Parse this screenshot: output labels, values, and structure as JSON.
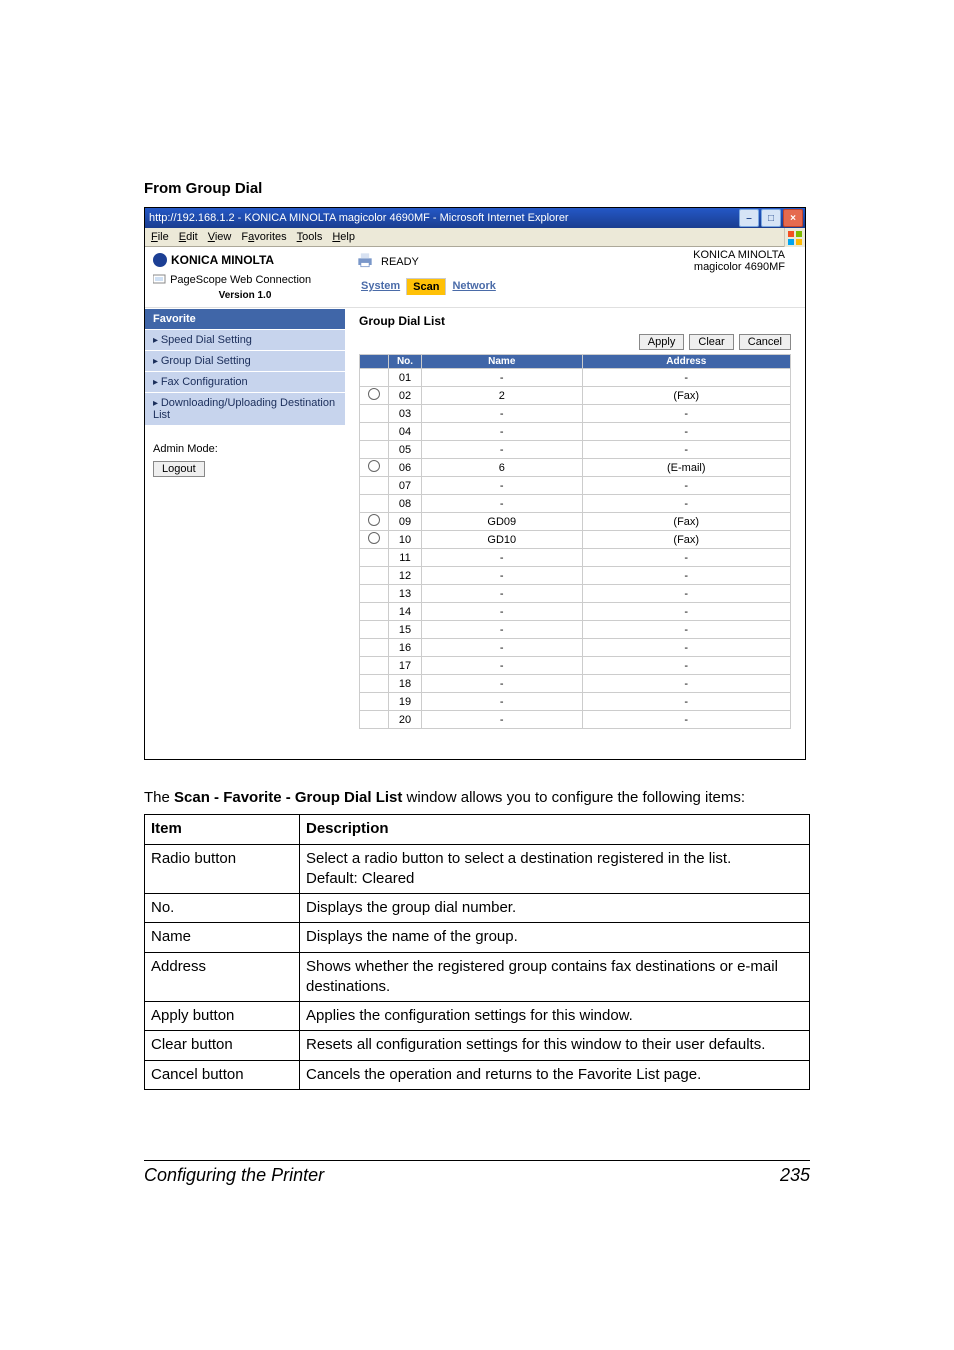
{
  "section_title": "From Group Dial",
  "window": {
    "title": "http://192.168.1.2 - KONICA MINOLTA magicolor 4690MF - Microsoft Internet Explorer",
    "menu": [
      "File",
      "Edit",
      "View",
      "Favorites",
      "Tools",
      "Help"
    ],
    "brand": "KONICA MINOLTA",
    "connection_label": "PageScope Web Connection",
    "version": "Version 1.0",
    "ready": "READY",
    "model_line1": "KONICA MINOLTA",
    "model_line2": "magicolor 4690MF",
    "tabs": {
      "system": "System",
      "scan": "Scan",
      "network": "Network"
    },
    "side": {
      "favorite": "Favorite",
      "speed": "Speed Dial Setting",
      "group": "Group Dial Setting",
      "fax": "Fax Configuration",
      "download": "Downloading/Uploading Destination List",
      "admin_label": "Admin Mode:",
      "logout": "Logout"
    },
    "panel_title": "Group Dial List",
    "buttons": {
      "apply": "Apply",
      "clear": "Clear",
      "cancel": "Cancel"
    },
    "headers": {
      "no": "No.",
      "name": "Name",
      "address": "Address"
    },
    "rows": [
      {
        "radio": false,
        "no": "01",
        "name": "-",
        "addr": "-"
      },
      {
        "radio": true,
        "no": "02",
        "name": "2",
        "addr": "(Fax)"
      },
      {
        "radio": false,
        "no": "03",
        "name": "-",
        "addr": "-"
      },
      {
        "radio": false,
        "no": "04",
        "name": "-",
        "addr": "-"
      },
      {
        "radio": false,
        "no": "05",
        "name": "-",
        "addr": "-"
      },
      {
        "radio": true,
        "no": "06",
        "name": "6",
        "addr": "(E-mail)"
      },
      {
        "radio": false,
        "no": "07",
        "name": "-",
        "addr": "-"
      },
      {
        "radio": false,
        "no": "08",
        "name": "-",
        "addr": "-"
      },
      {
        "radio": true,
        "no": "09",
        "name": "GD09",
        "addr": "(Fax)"
      },
      {
        "radio": true,
        "no": "10",
        "name": "GD10",
        "addr": "(Fax)"
      },
      {
        "radio": false,
        "no": "11",
        "name": "-",
        "addr": "-"
      },
      {
        "radio": false,
        "no": "12",
        "name": "-",
        "addr": "-"
      },
      {
        "radio": false,
        "no": "13",
        "name": "-",
        "addr": "-"
      },
      {
        "radio": false,
        "no": "14",
        "name": "-",
        "addr": "-"
      },
      {
        "radio": false,
        "no": "15",
        "name": "-",
        "addr": "-"
      },
      {
        "radio": false,
        "no": "16",
        "name": "-",
        "addr": "-"
      },
      {
        "radio": false,
        "no": "17",
        "name": "-",
        "addr": "-"
      },
      {
        "radio": false,
        "no": "18",
        "name": "-",
        "addr": "-"
      },
      {
        "radio": false,
        "no": "19",
        "name": "-",
        "addr": "-"
      },
      {
        "radio": false,
        "no": "20",
        "name": "-",
        "addr": "-"
      }
    ]
  },
  "intro_pre": "The ",
  "intro_bold": "Scan - Favorite - Group Dial List",
  "intro_post": " window allows you to configure the following items:",
  "desc": {
    "header_item": "Item",
    "header_desc": "Description",
    "rows": [
      {
        "item": "Radio button",
        "desc": "Select a radio button to select a destination registered in the list.\nDefault: Cleared"
      },
      {
        "item": "No.",
        "desc": "Displays the group dial number."
      },
      {
        "item": "Name",
        "desc": "Displays the name of the group."
      },
      {
        "item": "Address",
        "desc": "Shows whether the registered group contains fax destinations or e-mail destinations."
      },
      {
        "item": "Apply button",
        "desc": "Applies the configuration settings for this window."
      },
      {
        "item": "Clear button",
        "desc": "Resets all configuration settings for this window to their user defaults."
      },
      {
        "item": "Cancel button",
        "desc": "Cancels the operation and returns to the Favorite List page."
      }
    ]
  },
  "footer": {
    "title": "Configuring the Printer",
    "page": "235"
  }
}
